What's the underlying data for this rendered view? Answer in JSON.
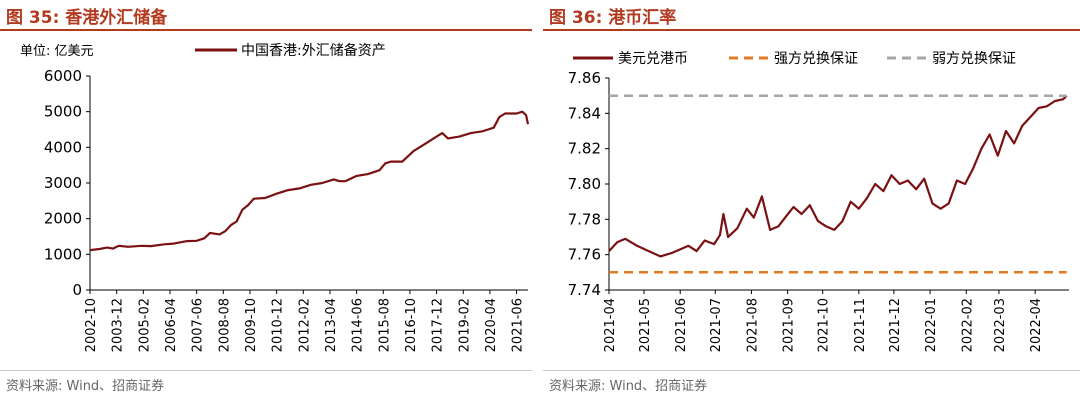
{
  "left": {
    "figure_title": "图 35:  香港外汇储备",
    "unit_label": "单位:  亿美元",
    "source": "资料来源:  Wind、招商证券"
  },
  "right": {
    "figure_title": "图 36:  港币汇率",
    "source": "资料来源:  Wind、招商证券"
  },
  "chart_data": [
    {
      "type": "line",
      "title": "",
      "xlabel": "",
      "ylabel": "",
      "unit": "单位:  亿美元",
      "ylim": [
        0,
        6000
      ],
      "yticks": [
        0,
        1000,
        2000,
        3000,
        4000,
        5000,
        6000
      ],
      "x_range": [
        "2002-10",
        "2021-12"
      ],
      "xticks": [
        "2002-10",
        "2003-12",
        "2005-02",
        "2006-04",
        "2007-06",
        "2008-08",
        "2009-10",
        "2010-12",
        "2012-02",
        "2013-04",
        "2014-06",
        "2015-08",
        "2016-10",
        "2017-12",
        "2019-02",
        "2020-04",
        "2021-06"
      ],
      "grid": false,
      "legend_position": "top",
      "series": [
        {
          "name": "中国香港:外汇储备资产",
          "color": "#7b1113",
          "x": [
            "2002-10",
            "2003-03",
            "2003-07",
            "2003-10",
            "2004-01",
            "2004-06",
            "2005-01",
            "2005-06",
            "2006-01",
            "2006-06",
            "2007-01",
            "2007-06",
            "2007-10",
            "2008-01",
            "2008-06",
            "2008-09",
            "2008-12",
            "2009-03",
            "2009-06",
            "2009-09",
            "2009-12",
            "2010-06",
            "2010-12",
            "2011-06",
            "2011-12",
            "2012-06",
            "2012-12",
            "2013-06",
            "2013-09",
            "2013-12",
            "2014-06",
            "2014-12",
            "2015-06",
            "2015-09",
            "2015-12",
            "2016-06",
            "2016-12",
            "2017-06",
            "2017-12",
            "2018-03",
            "2018-06",
            "2018-12",
            "2019-06",
            "2019-12",
            "2020-03",
            "2020-06",
            "2020-09",
            "2020-12",
            "2021-03",
            "2021-06",
            "2021-09",
            "2021-11",
            "2021-12"
          ],
          "values": [
            1120,
            1150,
            1190,
            1160,
            1240,
            1210,
            1240,
            1230,
            1280,
            1300,
            1370,
            1380,
            1450,
            1600,
            1560,
            1650,
            1820,
            1920,
            2250,
            2380,
            2560,
            2580,
            2700,
            2800,
            2850,
            2950,
            3000,
            3100,
            3050,
            3050,
            3200,
            3250,
            3360,
            3550,
            3600,
            3600,
            3900,
            4100,
            4300,
            4400,
            4250,
            4300,
            4400,
            4450,
            4500,
            4550,
            4850,
            4950,
            4950,
            4950,
            5000,
            4900,
            4650
          ]
        }
      ]
    },
    {
      "type": "line",
      "title": "",
      "xlabel": "",
      "ylabel": "",
      "ylim": [
        7.74,
        7.86
      ],
      "yticks": [
        7.74,
        7.76,
        7.78,
        7.8,
        7.82,
        7.84,
        7.86
      ],
      "x_range": [
        "2021-04-01",
        "2022-04-30"
      ],
      "xticks": [
        "2021-04",
        "2021-05",
        "2021-06",
        "2021-07",
        "2021-08",
        "2021-09",
        "2021-10",
        "2021-11",
        "2021-12",
        "2022-01",
        "2022-02",
        "2022-03",
        "2022-04"
      ],
      "grid": false,
      "legend_position": "top",
      "series": [
        {
          "name": "美元兑港币",
          "color": "#7b1113",
          "style": "solid",
          "x": [
            "2021-04-01",
            "2021-04-08",
            "2021-04-15",
            "2021-04-25",
            "2021-05-05",
            "2021-05-15",
            "2021-05-25",
            "2021-06-01",
            "2021-06-08",
            "2021-06-15",
            "2021-06-22",
            "2021-06-30",
            "2021-07-05",
            "2021-07-08",
            "2021-07-12",
            "2021-07-20",
            "2021-07-28",
            "2021-08-03",
            "2021-08-10",
            "2021-08-17",
            "2021-08-24",
            "2021-08-31",
            "2021-09-06",
            "2021-09-13",
            "2021-09-20",
            "2021-09-27",
            "2021-10-04",
            "2021-10-11",
            "2021-10-18",
            "2021-10-25",
            "2021-11-01",
            "2021-11-08",
            "2021-11-15",
            "2021-11-22",
            "2021-11-29",
            "2021-12-06",
            "2021-12-13",
            "2021-12-20",
            "2021-12-27",
            "2022-01-03",
            "2022-01-10",
            "2022-01-17",
            "2022-01-24",
            "2022-01-31",
            "2022-02-07",
            "2022-02-14",
            "2022-02-21",
            "2022-02-28",
            "2022-03-07",
            "2022-03-14",
            "2022-03-21",
            "2022-03-28",
            "2022-04-04",
            "2022-04-11",
            "2022-04-18",
            "2022-04-25",
            "2022-04-28"
          ],
          "values": [
            7.762,
            7.767,
            7.769,
            7.765,
            7.762,
            7.759,
            7.761,
            7.763,
            7.765,
            7.762,
            7.768,
            7.766,
            7.771,
            7.783,
            7.77,
            7.775,
            7.786,
            7.781,
            7.793,
            7.774,
            7.776,
            7.782,
            7.787,
            7.783,
            7.788,
            7.779,
            7.776,
            7.774,
            7.779,
            7.79,
            7.786,
            7.792,
            7.8,
            7.796,
            7.805,
            7.8,
            7.802,
            7.797,
            7.803,
            7.789,
            7.786,
            7.789,
            7.802,
            7.8,
            7.809,
            7.82,
            7.828,
            7.816,
            7.83,
            7.823,
            7.833,
            7.838,
            7.843,
            7.844,
            7.847,
            7.848,
            7.85
          ]
        },
        {
          "name": "强方兑换保证",
          "color": "#e07b22",
          "style": "dashed",
          "x": [
            "2021-04-01",
            "2022-04-28"
          ],
          "values": [
            7.75,
            7.75
          ]
        },
        {
          "name": "弱方兑换保证",
          "color": "#a6a6a6",
          "style": "dashed",
          "x": [
            "2021-04-01",
            "2022-04-28"
          ],
          "values": [
            7.85,
            7.85
          ]
        }
      ]
    }
  ]
}
